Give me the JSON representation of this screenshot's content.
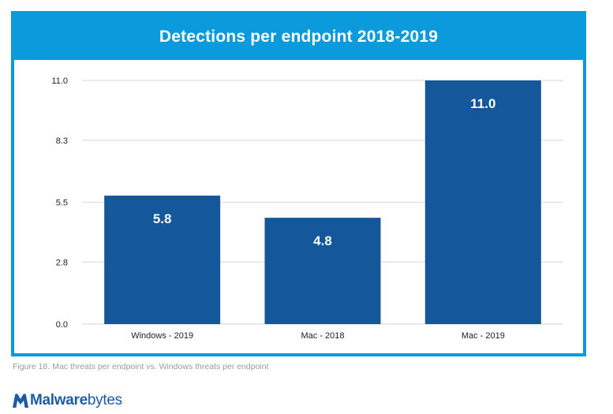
{
  "header": {
    "title": "Detections per endpoint 2018-2019"
  },
  "caption": "Figure 18. Mac threats per endpoint vs. Windows threats per endpoint",
  "brand": {
    "name_bold": "Malware",
    "name_regular": "bytes"
  },
  "colors": {
    "frame": "#0b9adb",
    "bar": "#14579b",
    "grid": "#e3e3e3"
  },
  "chart_data": {
    "type": "bar",
    "title": "Detections per endpoint 2018-2019",
    "categories": [
      "Windows - 2019",
      "Mac - 2018",
      "Mac - 2019"
    ],
    "values": [
      5.8,
      4.8,
      11.0
    ],
    "value_labels": [
      "5.8",
      "4.8",
      "11.0"
    ],
    "yticks": [
      "0.0",
      "2.8",
      "5.5",
      "8.3",
      "11.0"
    ],
    "ylim": [
      0,
      11.0
    ],
    "grid": true,
    "legend": false
  }
}
